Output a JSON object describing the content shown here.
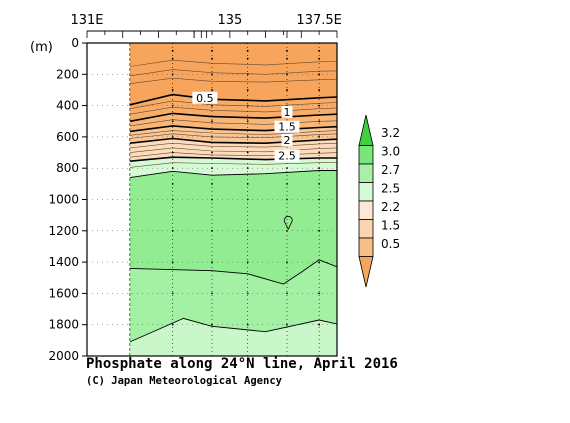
{
  "chart_data": {
    "type": "heatmap",
    "title": "Phosphate along 24°N line, April 2016",
    "subtitle": "(C) Japan Meteorological Agency",
    "xlabel": "",
    "ylabel": "(m)",
    "x_ticks": [
      "131E",
      "135",
      "137.5E"
    ],
    "x_tick_values": [
      131,
      135,
      137.5
    ],
    "xlim": [
      131,
      138
    ],
    "ylim": [
      0,
      2000
    ],
    "y_reversed": true,
    "y_ticks": [
      0,
      200,
      400,
      600,
      800,
      1000,
      1200,
      1400,
      1600,
      1800,
      2000
    ],
    "y_tick_labels": [
      "0",
      "200",
      "400",
      "600",
      "800",
      "1000",
      "1200",
      "1400",
      "1600",
      "1800",
      "2000"
    ],
    "data_xrange": [
      132.2,
      138
    ],
    "colorbar": {
      "levels": [
        "0.5",
        "1.5",
        "2.2",
        "2.5",
        "2.7",
        "3.0",
        "3.2"
      ],
      "colors": [
        "#f7a55c",
        "#f8bf88",
        "#fbd4b0",
        "#fde8d6",
        "#d6f9d6",
        "#a8f0a8",
        "#7ae57a",
        "#3fd03f"
      ]
    },
    "contour_labels": [
      "0.5",
      "1",
      "1.5",
      "2",
      "2.5"
    ],
    "contours": [
      {
        "value": 0.5,
        "points": [
          [
            132.2,
            395
          ],
          [
            133.4,
            330
          ],
          [
            134.5,
            360
          ],
          [
            136.0,
            370
          ],
          [
            137.5,
            350
          ],
          [
            138.0,
            345
          ]
        ]
      },
      {
        "value": 1.0,
        "points": [
          [
            132.2,
            500
          ],
          [
            133.4,
            450
          ],
          [
            134.5,
            470
          ],
          [
            136.0,
            480
          ],
          [
            137.5,
            460
          ],
          [
            138.0,
            455
          ]
        ]
      },
      {
        "value": 1.5,
        "points": [
          [
            132.2,
            565
          ],
          [
            133.4,
            530
          ],
          [
            134.5,
            550
          ],
          [
            136.0,
            560
          ],
          [
            137.5,
            540
          ],
          [
            138.0,
            535
          ]
        ]
      },
      {
        "value": 2.0,
        "points": [
          [
            132.2,
            640
          ],
          [
            133.4,
            610
          ],
          [
            134.5,
            635
          ],
          [
            136.0,
            640
          ],
          [
            137.5,
            620
          ],
          [
            138.0,
            615
          ]
        ]
      },
      {
        "value": 2.5,
        "points": [
          [
            132.2,
            755
          ],
          [
            133.4,
            730
          ],
          [
            134.5,
            735
          ],
          [
            136.0,
            745
          ],
          [
            137.5,
            735
          ],
          [
            138.0,
            735
          ]
        ]
      },
      {
        "value": 2.7,
        "points": [
          [
            132.2,
            860
          ],
          [
            133.4,
            820
          ],
          [
            134.5,
            845
          ],
          [
            136.0,
            835
          ],
          [
            137.5,
            815
          ],
          [
            138.0,
            815
          ]
        ]
      },
      {
        "value": 3.0,
        "points": [
          [
            132.2,
            1440
          ],
          [
            134.5,
            1455
          ],
          [
            135.5,
            1475
          ],
          [
            136.5,
            1540
          ],
          [
            137.0,
            1465
          ],
          [
            137.5,
            1385
          ],
          [
            138.0,
            1430
          ]
        ]
      },
      {
        "value": 2.7,
        "points": [
          [
            132.2,
            1910
          ],
          [
            133.0,
            1830
          ],
          [
            133.7,
            1760
          ],
          [
            134.5,
            1810
          ],
          [
            136.0,
            1845
          ],
          [
            137.5,
            1770
          ],
          [
            138.0,
            1795
          ]
        ]
      }
    ]
  }
}
